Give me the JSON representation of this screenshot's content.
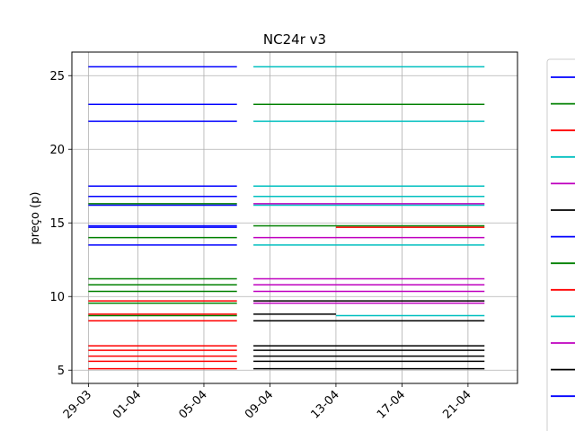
{
  "chart_data": {
    "type": "line",
    "title": "NC24r v3",
    "xlabel": "",
    "ylabel": "preço (p)",
    "xlim": [
      "2025-03-28",
      "2025-04-24"
    ],
    "ylim": [
      4.1,
      26.6
    ],
    "grid": true,
    "legend_placement": "right (clipped)",
    "xticks": [
      {
        "date": "2025-03-29",
        "label": "29-03"
      },
      {
        "date": "2025-04-01",
        "label": "01-04"
      },
      {
        "date": "2025-04-05",
        "label": "05-04"
      },
      {
        "date": "2025-04-09",
        "label": "09-04"
      },
      {
        "date": "2025-04-13",
        "label": "13-04"
      },
      {
        "date": "2025-04-17",
        "label": "17-04"
      },
      {
        "date": "2025-04-21",
        "label": "21-04"
      }
    ],
    "yticks": [
      {
        "value": 5,
        "label": "5"
      },
      {
        "value": 10,
        "label": "10"
      },
      {
        "value": 15,
        "label": "15"
      },
      {
        "value": 20,
        "label": "20"
      },
      {
        "value": 25,
        "label": "25"
      }
    ],
    "legend_colors": [
      "#0000ff",
      "#008000",
      "#ff0000",
      "#00bfbf",
      "#bf00bf",
      "#000000",
      "#0000ff",
      "#008000",
      "#ff0000",
      "#00bfbf",
      "#bf00bf",
      "#000000",
      "#0000ff"
    ],
    "series": [
      {
        "color": "#0000ff",
        "segments": [
          {
            "x": [
              "2025-03-29",
              "2025-04-07"
            ],
            "y": 25.6
          },
          {
            "x": [
              "2025-03-29",
              "2025-04-07"
            ],
            "y": 23.05
          },
          {
            "x": [
              "2025-03-29",
              "2025-04-07"
            ],
            "y": 21.9
          },
          {
            "x": [
              "2025-03-29",
              "2025-04-07"
            ],
            "y": 17.5
          },
          {
            "x": [
              "2025-03-29",
              "2025-04-07"
            ],
            "y": 16.8
          },
          {
            "x": [
              "2025-03-29",
              "2025-04-07"
            ],
            "y": 16.2
          },
          {
            "x": [
              "2025-03-29",
              "2025-04-07"
            ],
            "y": 14.8
          },
          {
            "x": [
              "2025-03-29",
              "2025-04-07"
            ],
            "y": 14.7
          },
          {
            "x": [
              "2025-03-29",
              "2025-04-07"
            ],
            "y": 13.5
          }
        ]
      },
      {
        "color": "#008000",
        "segments": [
          {
            "x": [
              "2025-03-29",
              "2025-04-07"
            ],
            "y": 16.3
          },
          {
            "x": [
              "2025-03-29",
              "2025-04-07"
            ],
            "y": 14.0
          },
          {
            "x": [
              "2025-03-29",
              "2025-04-07"
            ],
            "y": 11.2
          },
          {
            "x": [
              "2025-03-29",
              "2025-04-07"
            ],
            "y": 10.8
          },
          {
            "x": [
              "2025-03-29",
              "2025-04-07"
            ],
            "y": 10.35
          },
          {
            "x": [
              "2025-03-29",
              "2025-04-07"
            ],
            "y": 9.55
          },
          {
            "x": [
              "2025-03-29",
              "2025-04-07"
            ],
            "y": 8.7
          },
          {
            "x": [
              "2025-04-08",
              "2025-04-22"
            ],
            "y": 23.05
          },
          {
            "x": [
              "2025-04-08",
              "2025-04-22"
            ],
            "y": 14.8
          }
        ]
      },
      {
        "color": "#ff0000",
        "segments": [
          {
            "x": [
              "2025-03-29",
              "2025-04-07"
            ],
            "y": 9.7
          },
          {
            "x": [
              "2025-03-29",
              "2025-04-07"
            ],
            "y": 8.8
          },
          {
            "x": [
              "2025-03-29",
              "2025-04-07"
            ],
            "y": 8.35
          },
          {
            "x": [
              "2025-03-29",
              "2025-04-07"
            ],
            "y": 6.65
          },
          {
            "x": [
              "2025-03-29",
              "2025-04-07"
            ],
            "y": 6.35
          },
          {
            "x": [
              "2025-03-29",
              "2025-04-07"
            ],
            "y": 5.95
          },
          {
            "x": [
              "2025-03-29",
              "2025-04-07"
            ],
            "y": 5.6
          },
          {
            "x": [
              "2025-03-29",
              "2025-04-07"
            ],
            "y": 5.1
          },
          {
            "x": [
              "2025-04-13",
              "2025-04-22"
            ],
            "y": 14.7
          }
        ]
      },
      {
        "color": "#00bfbf",
        "segments": [
          {
            "x": [
              "2025-04-08",
              "2025-04-22"
            ],
            "y": 25.6
          },
          {
            "x": [
              "2025-04-08",
              "2025-04-22"
            ],
            "y": 21.9
          },
          {
            "x": [
              "2025-04-08",
              "2025-04-22"
            ],
            "y": 17.5
          },
          {
            "x": [
              "2025-04-08",
              "2025-04-22"
            ],
            "y": 16.8
          },
          {
            "x": [
              "2025-04-08",
              "2025-04-22"
            ],
            "y": 16.2
          },
          {
            "x": [
              "2025-04-08",
              "2025-04-22"
            ],
            "y": 13.5
          },
          {
            "x": [
              "2025-04-13",
              "2025-04-22"
            ],
            "y": 8.7
          }
        ]
      },
      {
        "color": "#bf00bf",
        "segments": [
          {
            "x": [
              "2025-04-08",
              "2025-04-22"
            ],
            "y": 16.3
          },
          {
            "x": [
              "2025-04-08",
              "2025-04-22"
            ],
            "y": 14.0
          },
          {
            "x": [
              "2025-04-08",
              "2025-04-22"
            ],
            "y": 11.2
          },
          {
            "x": [
              "2025-04-08",
              "2025-04-22"
            ],
            "y": 10.8
          },
          {
            "x": [
              "2025-04-08",
              "2025-04-22"
            ],
            "y": 10.35
          },
          {
            "x": [
              "2025-04-08",
              "2025-04-22"
            ],
            "y": 9.55
          }
        ]
      },
      {
        "color": "#000000",
        "segments": [
          {
            "x": [
              "2025-04-08",
              "2025-04-22"
            ],
            "y": 9.7
          },
          {
            "x": [
              "2025-04-08",
              "2025-04-13"
            ],
            "y": 8.8
          },
          {
            "x": [
              "2025-04-08",
              "2025-04-22"
            ],
            "y": 8.35
          },
          {
            "x": [
              "2025-04-08",
              "2025-04-22"
            ],
            "y": 6.65
          },
          {
            "x": [
              "2025-04-08",
              "2025-04-22"
            ],
            "y": 6.35
          },
          {
            "x": [
              "2025-04-08",
              "2025-04-22"
            ],
            "y": 5.95
          },
          {
            "x": [
              "2025-04-08",
              "2025-04-22"
            ],
            "y": 5.6
          },
          {
            "x": [
              "2025-04-08",
              "2025-04-22"
            ],
            "y": 5.1
          }
        ]
      }
    ]
  }
}
